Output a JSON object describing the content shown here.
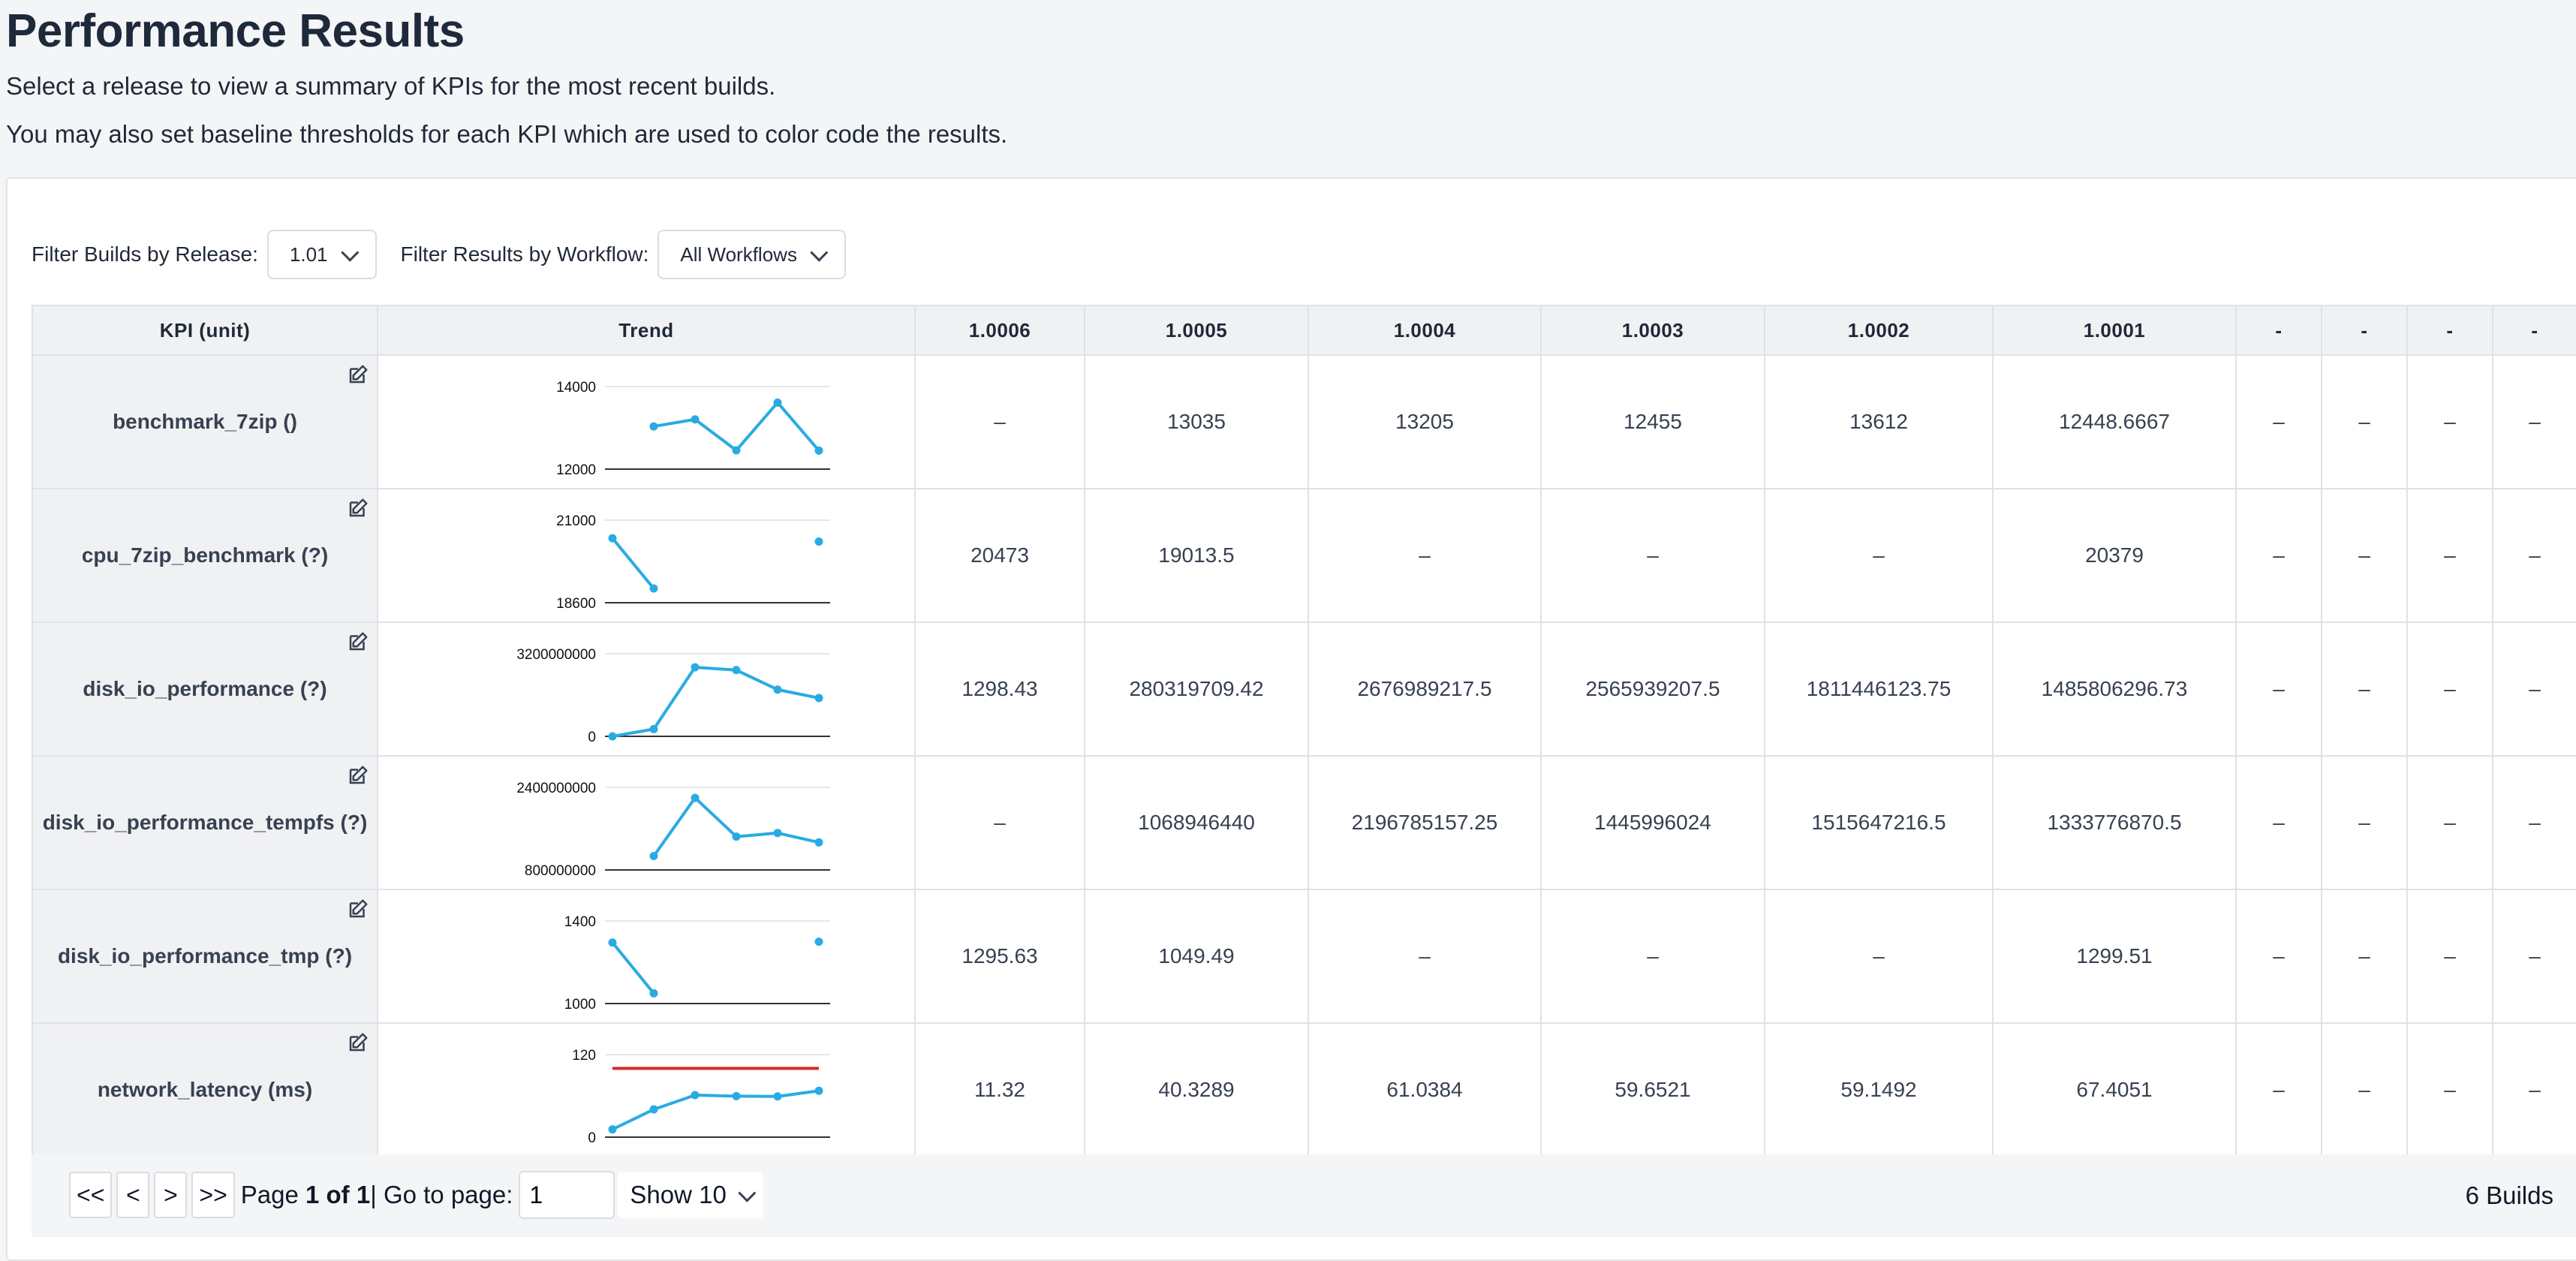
{
  "page": {
    "title": "Performance Results",
    "description1": "Select a release to view a summary of KPIs for the most recent builds.",
    "description2": "You may also set baseline thresholds for each KPI which are used to color code the results."
  },
  "filters": {
    "release_label": "Filter Builds by Release:",
    "release_value": "1.01",
    "workflow_label": "Filter Results by Workflow:",
    "workflow_value": "All Workflows"
  },
  "colors": {
    "trend_line": "#29abe2",
    "threshold": "#dc2626",
    "good": "#16a34a"
  },
  "table": {
    "headers": [
      "KPI (unit)",
      "Trend",
      "1.0006",
      "1.0005",
      "1.0004",
      "1.0003",
      "1.0002",
      "1.0001",
      "-",
      "-",
      "-",
      "-"
    ],
    "rows": [
      {
        "kpi": "benchmark_7zip ()",
        "cells": [
          "–",
          "13035",
          "13205",
          "12455",
          "13612",
          "12448.6667",
          "–",
          "–",
          "–",
          "–"
        ],
        "status": [
          "",
          "",
          "",
          "",
          "",
          "",
          "",
          "",
          "",
          ""
        ],
        "trend": {
          "ymax_label": "14000",
          "ymin_label": "12000",
          "ymin": 12000,
          "ymax": 14000,
          "values": [
            null,
            13035,
            13205,
            12455,
            13612,
            12448.6667
          ],
          "threshold": null
        }
      },
      {
        "kpi": "cpu_7zip_benchmark (?)",
        "cells": [
          "20473",
          "19013.5",
          "–",
          "–",
          "–",
          "20379",
          "–",
          "–",
          "–",
          "–"
        ],
        "status": [
          "",
          "",
          "",
          "",
          "",
          "",
          "",
          "",
          "",
          ""
        ],
        "trend": {
          "ymax_label": "21000",
          "ymin_label": "18600",
          "ymin": 18600,
          "ymax": 21000,
          "values": [
            20473,
            19013.5,
            null,
            null,
            null,
            20379
          ],
          "threshold": null
        }
      },
      {
        "kpi": "disk_io_performance (?)",
        "cells": [
          "1298.43",
          "280319709.42",
          "2676989217.5",
          "2565939207.5",
          "1811446123.75",
          "1485806296.73",
          "–",
          "–",
          "–",
          "–"
        ],
        "status": [
          "",
          "",
          "",
          "",
          "",
          "",
          "",
          "",
          "",
          ""
        ],
        "trend": {
          "ymax_label": "3200000000",
          "ymin_label": "0",
          "ymin": 0,
          "ymax": 3200000000,
          "values": [
            1298.43,
            280319709.42,
            2676989217.5,
            2565939207.5,
            1811446123.75,
            1485806296.73
          ],
          "threshold": null
        }
      },
      {
        "kpi": "disk_io_performance_tempfs (?)",
        "cells": [
          "–",
          "1068946440",
          "2196785157.25",
          "1445996024",
          "1515647216.5",
          "1333776870.5",
          "–",
          "–",
          "–",
          "–"
        ],
        "status": [
          "",
          "",
          "",
          "",
          "",
          "",
          "",
          "",
          "",
          ""
        ],
        "trend": {
          "ymax_label": "2400000000",
          "ymin_label": "800000000",
          "ymin": 800000000,
          "ymax": 2400000000,
          "values": [
            null,
            1068946440,
            2196785157.25,
            1445996024,
            1515647216.5,
            1333776870.5
          ],
          "threshold": null
        }
      },
      {
        "kpi": "disk_io_performance_tmp (?)",
        "cells": [
          "1295.63",
          "1049.49",
          "–",
          "–",
          "–",
          "1299.51",
          "–",
          "–",
          "–",
          "–"
        ],
        "status": [
          "",
          "",
          "",
          "",
          "",
          "",
          "",
          "",
          "",
          ""
        ],
        "trend": {
          "ymax_label": "1400",
          "ymin_label": "1000",
          "ymin": 1000,
          "ymax": 1400,
          "values": [
            1295.63,
            1049.49,
            null,
            null,
            null,
            1299.51
          ],
          "threshold": null
        }
      },
      {
        "kpi": "network_latency (ms)",
        "cells": [
          "11.32",
          "40.3289",
          "61.0384",
          "59.6521",
          "59.1492",
          "67.4051",
          "–",
          "–",
          "–",
          "–"
        ],
        "status": [
          "green",
          "green",
          "green",
          "green",
          "green",
          "green",
          "",
          "",
          "",
          ""
        ],
        "trend": {
          "ymax_label": "120",
          "ymin_label": "0",
          "ymin": 0,
          "ymax": 120,
          "values": [
            11.32,
            40.3289,
            61.0384,
            59.6521,
            59.1492,
            67.4051
          ],
          "threshold": 100
        }
      }
    ]
  },
  "pagination": {
    "first": "<<",
    "prev": "<",
    "next": ">",
    "last": ">>",
    "page_prefix": "Page ",
    "page_of": "1 of 1",
    "go_label": "| Go to page:",
    "go_value": "1",
    "show_label": "Show 10",
    "builds_count": "6 Builds"
  }
}
